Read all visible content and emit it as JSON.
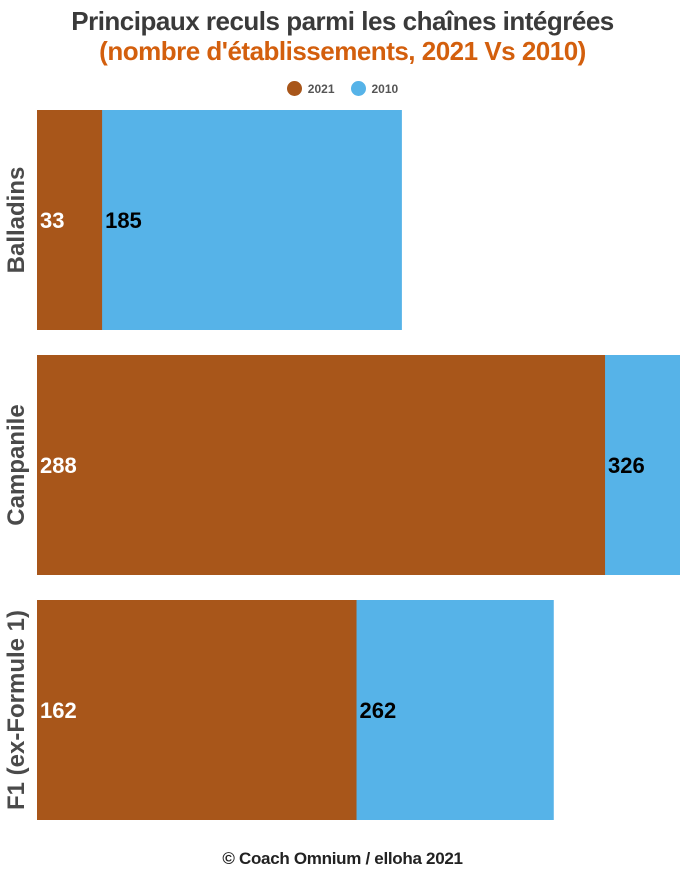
{
  "chart_data": {
    "type": "bar",
    "orientation": "horizontal",
    "stacking": "overlay",
    "title": "Principaux reculs parmi les chaînes intégrées",
    "subtitle": "(nombre d'établissements, 2021 Vs 2010)",
    "categories": [
      "Balladins",
      "Campanile",
      "F1 (ex-Formule 1)"
    ],
    "series": [
      {
        "name": "2021",
        "values": [
          33,
          288,
          162
        ],
        "color": "#a8561a"
      },
      {
        "name": "2010",
        "values": [
          185,
          326,
          262
        ],
        "color": "#56b3e8"
      }
    ],
    "xlim": [
      0,
      326
    ],
    "grid": false,
    "legend": "top-center",
    "data_labels": true
  },
  "colors": {
    "title": "#3a3a3a",
    "subtitle": "#d35f0d",
    "label_2021": "#ffffff",
    "label_2010": "#000000",
    "category_label": "#4a4a4a"
  },
  "footer": "© Coach Omnium / elloha 2021"
}
